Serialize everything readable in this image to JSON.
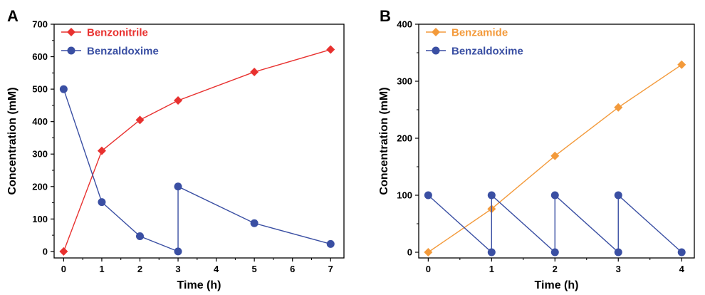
{
  "chart_data": [
    {
      "panel": "A",
      "type": "line",
      "xlabel": "Time (h)",
      "ylabel": "Concentration (mM)",
      "xlim": [
        -0.25,
        7.35
      ],
      "ylim": [
        -20,
        700
      ],
      "xticks": [
        0,
        1,
        2,
        3,
        4,
        5,
        6,
        7
      ],
      "yticks": [
        0,
        100,
        200,
        300,
        400,
        500,
        600,
        700
      ],
      "legend_position": "top-left",
      "series": [
        {
          "name": "Benzonitrile",
          "color": "#e8312f",
          "marker": "diamond",
          "points": [
            [
              0,
              0
            ],
            [
              1,
              310
            ],
            [
              2,
              405
            ],
            [
              3,
              465
            ],
            [
              5,
              553
            ],
            [
              7,
              622
            ]
          ]
        },
        {
          "name": "Benzaldoxime",
          "color": "#3a4fa3",
          "marker": "circle",
          "points": [
            [
              0,
              500
            ],
            [
              1,
              152
            ],
            [
              2,
              47
            ],
            [
              3,
              0
            ],
            [
              3,
              200
            ],
            [
              5,
              87
            ],
            [
              7,
              23
            ]
          ]
        }
      ]
    },
    {
      "panel": "B",
      "type": "line",
      "xlabel": "Time (h)",
      "ylabel": "Concentration (mM)",
      "xlim": [
        -0.15,
        4.2
      ],
      "ylim": [
        -10,
        400
      ],
      "xticks": [
        0,
        1,
        2,
        3,
        4
      ],
      "yticks": [
        0,
        100,
        200,
        300,
        400
      ],
      "legend_position": "top-left",
      "series": [
        {
          "name": "Benzamide",
          "color": "#f39a3b",
          "marker": "diamond",
          "points": [
            [
              0,
              0
            ],
            [
              1,
              76
            ],
            [
              2,
              169
            ],
            [
              3,
              254
            ],
            [
              4,
              329
            ]
          ]
        },
        {
          "name": "Benzaldoxime",
          "color": "#3a4fa3",
          "marker": "circle",
          "points": [
            [
              0,
              100
            ],
            [
              1,
              0
            ],
            [
              1,
              100
            ],
            [
              2,
              0
            ],
            [
              2,
              100
            ],
            [
              3,
              0
            ],
            [
              3,
              100
            ],
            [
              4,
              0
            ]
          ]
        }
      ]
    }
  ]
}
